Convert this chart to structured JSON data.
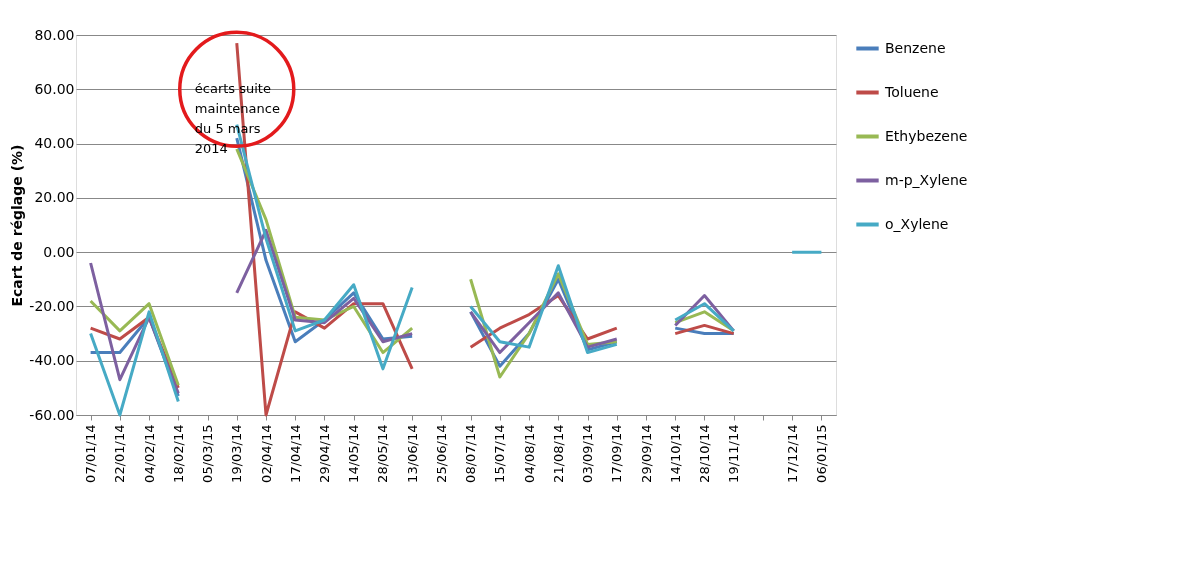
{
  "chart_data": {
    "type": "line",
    "ylabel": "Ecart de réglage (%)",
    "categories": [
      "07/01/14",
      "22/01/14",
      "04/02/14",
      "18/02/14",
      "05/03/15",
      "19/03/14",
      "02/04/14",
      "17/04/14",
      "29/04/14",
      "14/05/14",
      "28/05/14",
      "13/06/14",
      "25/06/14",
      "08/07/14",
      "15/07/14",
      "04/08/14",
      "21/08/14",
      "03/09/14",
      "17/09/14",
      "29/09/14",
      "14/10/14",
      "28/10/14",
      "19/11/14",
      null,
      "17/12/14",
      "06/01/15"
    ],
    "series": [
      {
        "name": "Benzene",
        "color": "#4a7ebb",
        "values": [
          -37,
          -37,
          -24,
          -53,
          null,
          42,
          -3,
          -33,
          -25,
          -15,
          -32,
          -31,
          null,
          -22,
          -42,
          -30,
          -10,
          -36,
          -33,
          null,
          -28,
          -30,
          -30,
          null,
          null,
          null
        ]
      },
      {
        "name": "Toluene",
        "color": "#be4b48",
        "values": [
          -28,
          -32,
          -24,
          -50,
          null,
          77,
          -60,
          -22,
          -28,
          -19,
          -19,
          -43,
          null,
          -35,
          -28,
          -23,
          -16,
          -32,
          -28,
          null,
          -30,
          -27,
          -30,
          null,
          null,
          null
        ]
      },
      {
        "name": "Ethybezene",
        "color": "#98b954",
        "values": [
          -18,
          -29,
          -19,
          -49,
          null,
          38,
          12,
          -24,
          -25,
          -20,
          -37,
          -28,
          null,
          -10,
          -46,
          -30,
          -8,
          -34,
          -33,
          null,
          -26,
          -22,
          -29,
          null,
          null,
          null
        ]
      },
      {
        "name": "m-p_Xylene",
        "color": "#7d60a0",
        "values": [
          -4,
          -47,
          -24,
          -52,
          null,
          -15,
          8,
          -25,
          -26,
          -17,
          -33,
          -30,
          null,
          -22,
          -37,
          -26,
          -15,
          -35,
          -32,
          null,
          -27,
          -16,
          -29,
          null,
          null,
          null
        ]
      },
      {
        "name": "o_Xylene",
        "color": "#46aac5",
        "values": [
          -30,
          -60,
          -22,
          -55,
          null,
          47,
          5,
          -29,
          -25,
          -12,
          -43,
          -13,
          null,
          -20,
          -33,
          -35,
          -5,
          -37,
          -34,
          null,
          -25,
          -19,
          -29,
          null,
          0,
          0
        ]
      }
    ],
    "ylim": [
      -60,
      80
    ],
    "yticks": [
      {
        "value": -60,
        "label": "-60.00"
      },
      {
        "value": -40,
        "label": "-40.00"
      },
      {
        "value": -20,
        "label": "-20.00"
      },
      {
        "value": 0,
        "label": "0.00"
      },
      {
        "value": 20,
        "label": "20.00"
      },
      {
        "value": 40,
        "label": "40.00"
      },
      {
        "value": 60,
        "label": "60.00"
      },
      {
        "value": 80,
        "label": "80.00"
      }
    ],
    "grid": "y",
    "legend": "right",
    "marker": "none",
    "line_style": "solid",
    "annotations": [
      {
        "text": "écarts suite maintenance du 5 mars 2014",
        "x": "19/03/14",
        "y": 60
      }
    ]
  }
}
